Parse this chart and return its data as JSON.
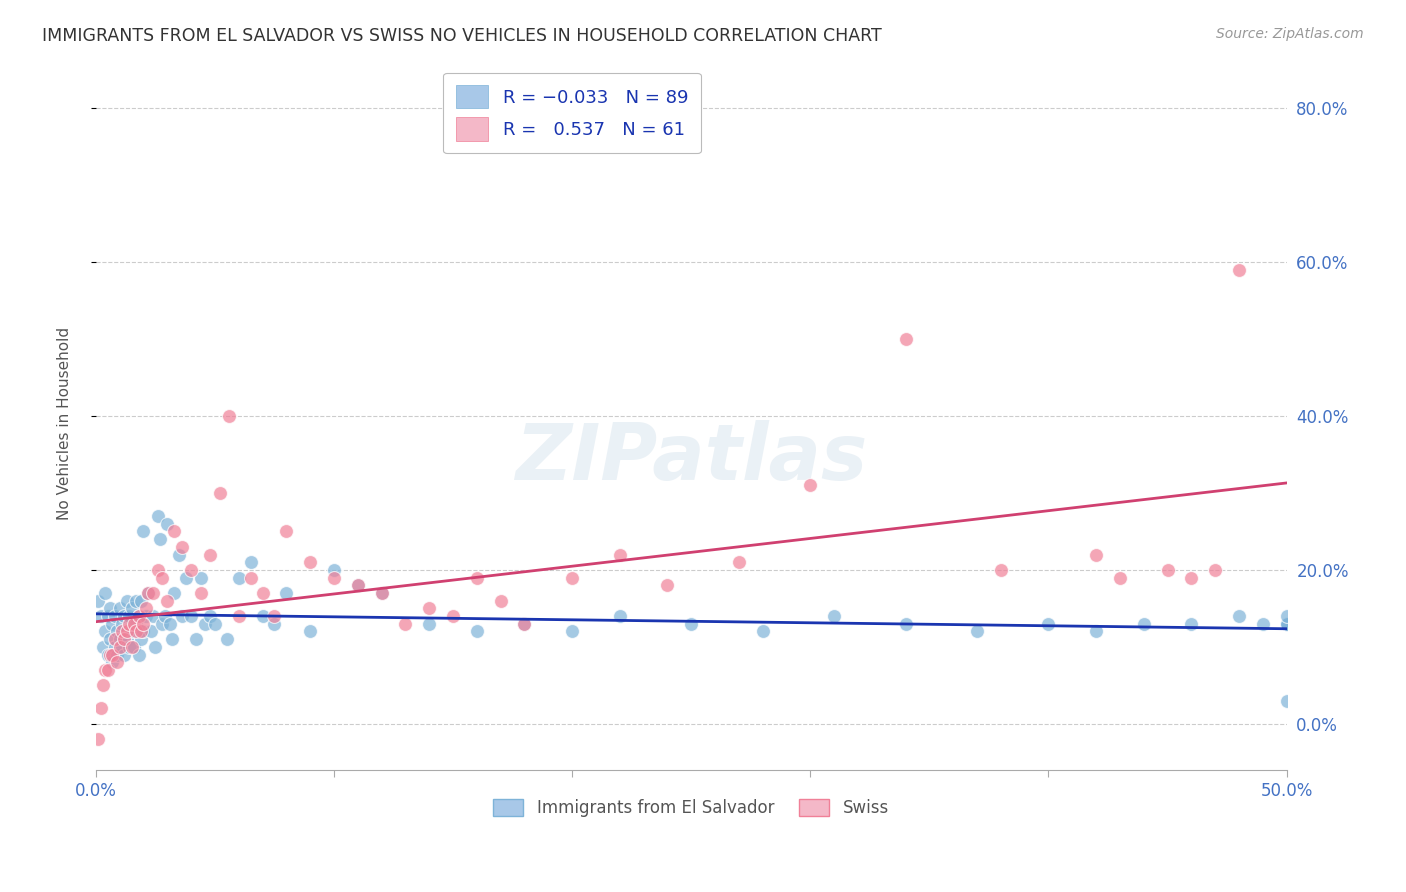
{
  "title": "IMMIGRANTS FROM EL SALVADOR VS SWISS NO VEHICLES IN HOUSEHOLD CORRELATION CHART",
  "source": "Source: ZipAtlas.com",
  "ylabel": "No Vehicles in Household",
  "legend_labels": [
    "Immigrants from El Salvador",
    "Swiss"
  ],
  "blue_scatter_color": "#7eb3d8",
  "pink_scatter_color": "#f08098",
  "blue_line_color": "#1a35b0",
  "pink_line_color": "#d04070",
  "background_color": "#ffffff",
  "grid_color": "#cccccc",
  "xmin": 0.0,
  "xmax": 0.5,
  "ymin": -0.06,
  "ymax": 0.84,
  "ytick_vals": [
    0.0,
    0.2,
    0.4,
    0.6,
    0.8
  ],
  "blue_x": [
    0.001,
    0.002,
    0.003,
    0.004,
    0.004,
    0.005,
    0.005,
    0.006,
    0.006,
    0.007,
    0.007,
    0.008,
    0.008,
    0.009,
    0.009,
    0.01,
    0.01,
    0.011,
    0.011,
    0.012,
    0.012,
    0.013,
    0.013,
    0.014,
    0.014,
    0.015,
    0.015,
    0.016,
    0.017,
    0.017,
    0.018,
    0.018,
    0.019,
    0.019,
    0.02,
    0.02,
    0.021,
    0.022,
    0.023,
    0.024,
    0.025,
    0.026,
    0.027,
    0.028,
    0.029,
    0.03,
    0.031,
    0.032,
    0.033,
    0.035,
    0.036,
    0.038,
    0.04,
    0.042,
    0.044,
    0.046,
    0.048,
    0.05,
    0.055,
    0.06,
    0.065,
    0.07,
    0.075,
    0.08,
    0.09,
    0.1,
    0.11,
    0.12,
    0.14,
    0.16,
    0.18,
    0.2,
    0.22,
    0.25,
    0.28,
    0.31,
    0.34,
    0.37,
    0.4,
    0.42,
    0.44,
    0.46,
    0.48,
    0.49,
    0.5,
    0.5,
    0.5,
    0.5,
    0.5
  ],
  "blue_y": [
    0.16,
    0.14,
    0.1,
    0.12,
    0.17,
    0.09,
    0.14,
    0.11,
    0.15,
    0.08,
    0.13,
    0.1,
    0.14,
    0.09,
    0.12,
    0.11,
    0.15,
    0.1,
    0.13,
    0.09,
    0.14,
    0.11,
    0.16,
    0.1,
    0.14,
    0.12,
    0.15,
    0.1,
    0.13,
    0.16,
    0.09,
    0.14,
    0.11,
    0.16,
    0.25,
    0.12,
    0.14,
    0.17,
    0.12,
    0.14,
    0.1,
    0.27,
    0.24,
    0.13,
    0.14,
    0.26,
    0.13,
    0.11,
    0.17,
    0.22,
    0.14,
    0.19,
    0.14,
    0.11,
    0.19,
    0.13,
    0.14,
    0.13,
    0.11,
    0.19,
    0.21,
    0.14,
    0.13,
    0.17,
    0.12,
    0.2,
    0.18,
    0.17,
    0.13,
    0.12,
    0.13,
    0.12,
    0.14,
    0.13,
    0.12,
    0.14,
    0.13,
    0.12,
    0.13,
    0.12,
    0.13,
    0.13,
    0.14,
    0.13,
    0.13,
    0.13,
    0.13,
    0.14,
    0.03
  ],
  "pink_x": [
    0.001,
    0.002,
    0.003,
    0.004,
    0.005,
    0.006,
    0.007,
    0.008,
    0.009,
    0.01,
    0.011,
    0.012,
    0.013,
    0.014,
    0.015,
    0.016,
    0.017,
    0.018,
    0.019,
    0.02,
    0.021,
    0.022,
    0.024,
    0.026,
    0.028,
    0.03,
    0.033,
    0.036,
    0.04,
    0.044,
    0.048,
    0.052,
    0.056,
    0.06,
    0.065,
    0.07,
    0.075,
    0.08,
    0.09,
    0.1,
    0.11,
    0.12,
    0.13,
    0.14,
    0.15,
    0.16,
    0.17,
    0.18,
    0.2,
    0.22,
    0.24,
    0.27,
    0.3,
    0.34,
    0.38,
    0.42,
    0.43,
    0.45,
    0.46,
    0.47,
    0.48
  ],
  "pink_y": [
    -0.02,
    0.02,
    0.05,
    0.07,
    0.07,
    0.09,
    0.09,
    0.11,
    0.08,
    0.1,
    0.12,
    0.11,
    0.12,
    0.13,
    0.1,
    0.13,
    0.12,
    0.14,
    0.12,
    0.13,
    0.15,
    0.17,
    0.17,
    0.2,
    0.19,
    0.16,
    0.25,
    0.23,
    0.2,
    0.17,
    0.22,
    0.3,
    0.4,
    0.14,
    0.19,
    0.17,
    0.14,
    0.25,
    0.21,
    0.19,
    0.18,
    0.17,
    0.13,
    0.15,
    0.14,
    0.19,
    0.16,
    0.13,
    0.19,
    0.22,
    0.18,
    0.21,
    0.31,
    0.5,
    0.2,
    0.22,
    0.19,
    0.2,
    0.19,
    0.2,
    0.59
  ]
}
